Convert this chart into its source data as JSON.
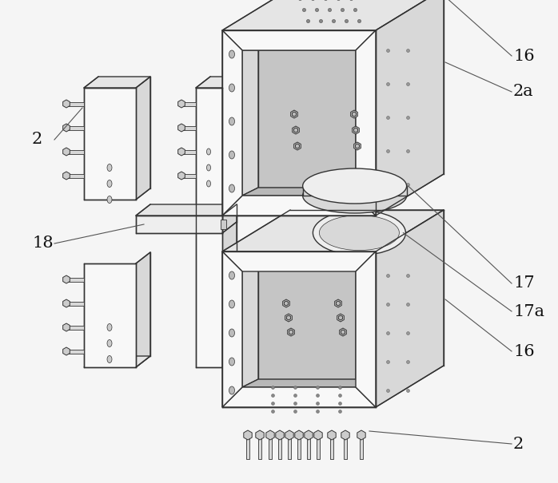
{
  "bg_color": "#f5f5f5",
  "line_color": "#333333",
  "fill_white": "#f8f8f8",
  "fill_light": "#eeeeee",
  "fill_mid": "#d8d8d8",
  "fill_dark": "#b8b8b8",
  "fill_top": "#e5e5e5",
  "fill_inner": "#c5c5c5",
  "fill_back": "#bbbbbb",
  "label_color": "#111111",
  "label_fontsize": 15,
  "ann_lw": 0.8,
  "ann_color": "#555555"
}
